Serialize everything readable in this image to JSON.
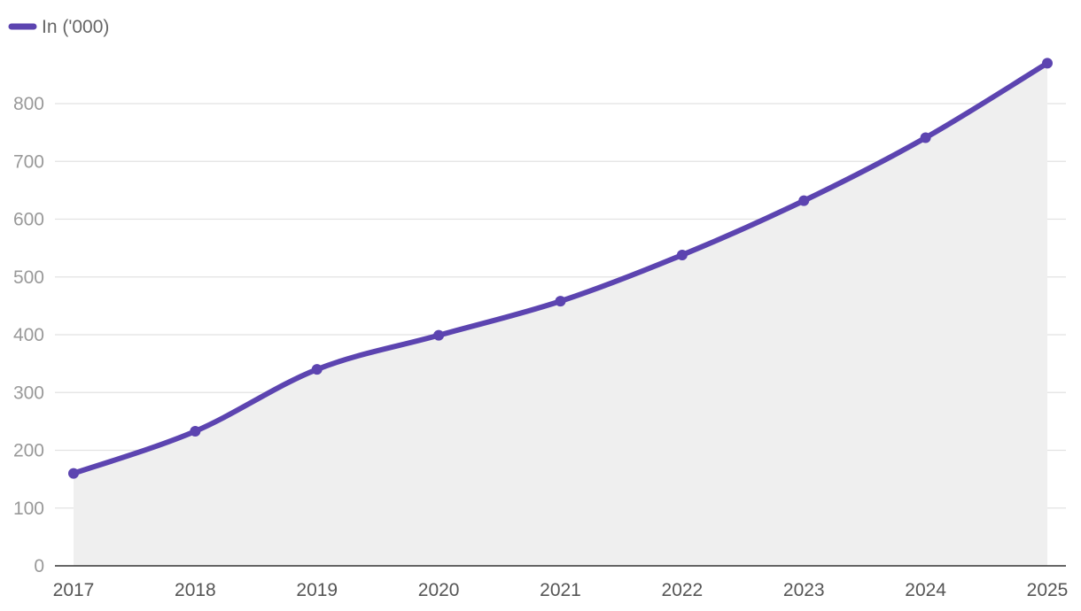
{
  "chart_data": {
    "type": "area",
    "categories": [
      "2017",
      "2018",
      "2019",
      "2020",
      "2021",
      "2022",
      "2023",
      "2024",
      "2025"
    ],
    "series": [
      {
        "name": "In ('000)",
        "values": [
          160,
          233,
          340,
          399,
          458,
          538,
          632,
          741,
          870
        ]
      }
    ],
    "yticks": [
      "0",
      "100",
      "200",
      "300",
      "400",
      "500",
      "600",
      "700",
      "800"
    ],
    "ylim": [
      0,
      900
    ],
    "grid": true,
    "legend": "top-left",
    "colors": {
      "line": "#5c44b0",
      "area": "#efefef",
      "grid": "#e2e2e2",
      "axis": "#333333"
    }
  }
}
